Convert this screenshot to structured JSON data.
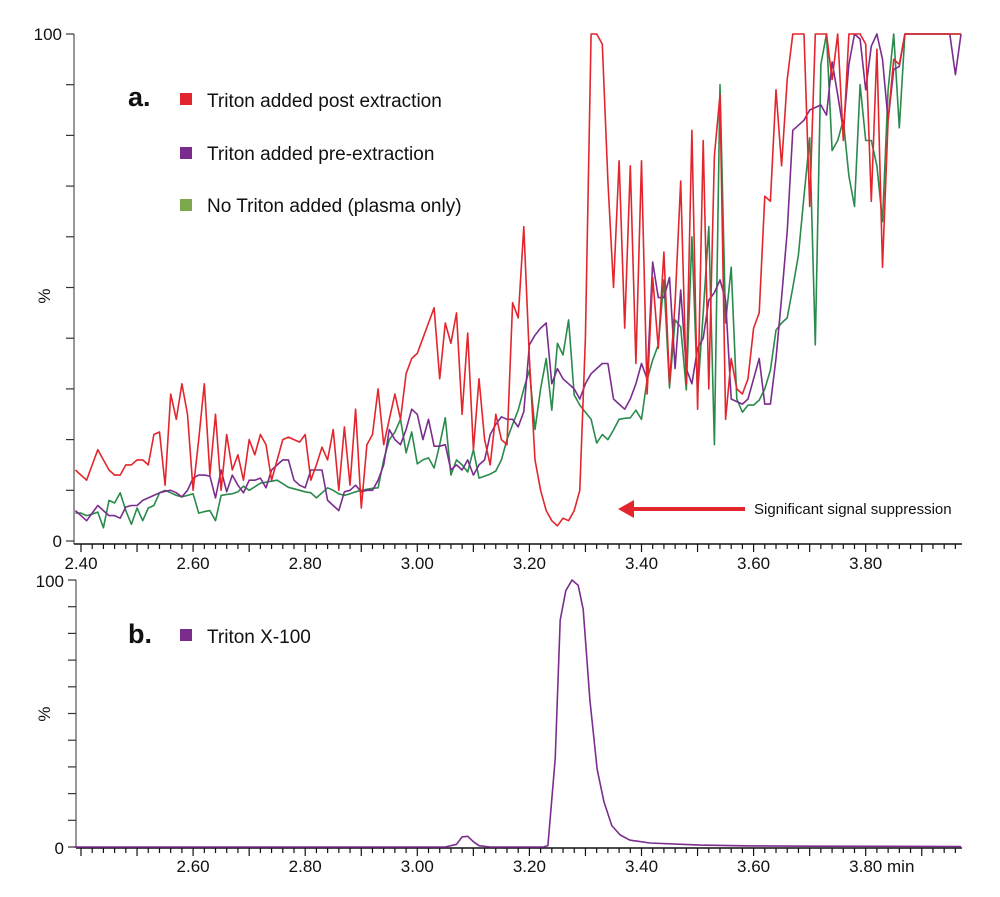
{
  "chart_data": [
    {
      "type": "line",
      "panel_label": "a.",
      "ylabel": "%",
      "ylim": [
        0,
        100
      ],
      "xlim": [
        2.387,
        3.97
      ],
      "y_tick_labels": [
        "0",
        "100"
      ],
      "x_tick_labels": [
        "2.40",
        "2.60",
        "2.80",
        "3.00",
        "3.20",
        "3.40",
        "3.60",
        "3.80"
      ],
      "grid": false,
      "legend_placement": "top-left",
      "annotation": {
        "text": "Significant signal suppression",
        "arrow_tip": {
          "x": 3.36,
          "y": 6
        },
        "color": "#e3262d"
      },
      "x": [
        2.39,
        2.4,
        2.41,
        2.42,
        2.43,
        2.44,
        2.45,
        2.46,
        2.47,
        2.48,
        2.49,
        2.5,
        2.51,
        2.52,
        2.53,
        2.54,
        2.55,
        2.56,
        2.57,
        2.58,
        2.59,
        2.6,
        2.61,
        2.62,
        2.63,
        2.64,
        2.65,
        2.66,
        2.67,
        2.68,
        2.69,
        2.7,
        2.71,
        2.72,
        2.73,
        2.74,
        2.75,
        2.76,
        2.77,
        2.78,
        2.79,
        2.8,
        2.81,
        2.82,
        2.83,
        2.84,
        2.85,
        2.86,
        2.87,
        2.88,
        2.89,
        2.9,
        2.91,
        2.92,
        2.93,
        2.94,
        2.95,
        2.96,
        2.97,
        2.98,
        2.99,
        3.0,
        3.01,
        3.02,
        3.03,
        3.04,
        3.05,
        3.06,
        3.07,
        3.08,
        3.09,
        3.1,
        3.11,
        3.12,
        3.13,
        3.14,
        3.15,
        3.16,
        3.17,
        3.18,
        3.19,
        3.2,
        3.21,
        3.22,
        3.23,
        3.24,
        3.25,
        3.26,
        3.27,
        3.28,
        3.29,
        3.3,
        3.31,
        3.32,
        3.33,
        3.34,
        3.35,
        3.36,
        3.37,
        3.38,
        3.39,
        3.4,
        3.41,
        3.42,
        3.43,
        3.44,
        3.45,
        3.46,
        3.47,
        3.48,
        3.49,
        3.5,
        3.51,
        3.52,
        3.53,
        3.54,
        3.55,
        3.56,
        3.57,
        3.58,
        3.59,
        3.6,
        3.61,
        3.62,
        3.63,
        3.64,
        3.65,
        3.66,
        3.67,
        3.68,
        3.69,
        3.7,
        3.71,
        3.72,
        3.73,
        3.74,
        3.75,
        3.76,
        3.77,
        3.78,
        3.79,
        3.8,
        3.81,
        3.82,
        3.83,
        3.84,
        3.85,
        3.86,
        3.87,
        3.88,
        3.89,
        3.9,
        3.91,
        3.92,
        3.93,
        3.94,
        3.95,
        3.96,
        3.97
      ],
      "series": [
        {
          "name": "Triton added post extraction",
          "color": "#e3262d",
          "legend_color": "#e3262d",
          "values": [
            14,
            13,
            12,
            15,
            18,
            16,
            14,
            13,
            13,
            15,
            15,
            16,
            16,
            15,
            21,
            21.5,
            11,
            29,
            24,
            31,
            25,
            10,
            20,
            31,
            13,
            25,
            10,
            21,
            14,
            17,
            12,
            20,
            17,
            21,
            19,
            12,
            16,
            20,
            20.5,
            20,
            19.5,
            21,
            12,
            15,
            18.5,
            16,
            22,
            10,
            22.5,
            11,
            26,
            6.5,
            19,
            21,
            30,
            19,
            24,
            29,
            24,
            33,
            36,
            37,
            40,
            43,
            46,
            32,
            43,
            39,
            45,
            25,
            41,
            18,
            32,
            20,
            15,
            25,
            20,
            19,
            47,
            44,
            62,
            36,
            16,
            10,
            6,
            4,
            3,
            4.5,
            4,
            6,
            10,
            40,
            100,
            100,
            98,
            71,
            50,
            75,
            42,
            74,
            35,
            75,
            29,
            52,
            38,
            57,
            31,
            47,
            71,
            31,
            81,
            26,
            79,
            30,
            76,
            88,
            24,
            36,
            30,
            29,
            32,
            42,
            45,
            68,
            67,
            89,
            74,
            91,
            100,
            100,
            100,
            66,
            100,
            100,
            100,
            91,
            100,
            79,
            100,
            100,
            100,
            98,
            67,
            97,
            54,
            83,
            95,
            94,
            100,
            100,
            100,
            100,
            100,
            100,
            100,
            100,
            100,
            100,
            100
          ]
        },
        {
          "name": "Triton added pre-extraction",
          "color": "#7b2d8e",
          "legend_color": "#7b2d8e",
          "values": [
            6,
            5,
            4,
            5.5,
            7,
            6,
            5,
            5,
            4.5,
            6.7,
            7,
            7,
            8,
            8.5,
            9,
            9.5,
            9.8,
            10,
            9.5,
            8.7,
            10,
            12.4,
            13,
            13,
            12.8,
            8.5,
            14,
            9.7,
            13,
            11,
            9.5,
            12,
            12,
            12.4,
            10.5,
            14,
            15,
            16,
            16,
            12,
            11,
            10.5,
            14,
            14,
            14,
            8,
            7,
            6,
            9.7,
            10,
            11,
            9.7,
            10,
            10,
            12,
            15,
            22,
            20,
            19,
            22,
            26,
            25,
            20,
            24,
            18.7,
            18.7,
            19,
            14,
            15,
            14,
            16,
            13,
            15,
            16,
            21,
            23,
            24.5,
            24,
            24,
            22.5,
            25.5,
            38.7,
            40.6,
            42,
            43,
            31,
            34,
            32,
            31,
            30,
            28,
            31,
            33,
            34,
            35,
            35,
            28,
            27,
            26,
            28,
            31,
            35,
            32,
            55,
            48,
            48,
            52,
            34,
            49.5,
            34,
            31,
            38,
            40,
            47.5,
            49,
            51.5,
            47.5,
            28,
            27.5,
            27,
            28,
            32,
            36,
            27,
            27,
            36,
            48,
            61,
            81,
            82,
            83,
            85,
            85.5,
            86,
            84,
            94.5,
            88,
            81,
            94,
            100,
            99,
            89,
            97.6,
            100,
            95,
            83,
            93,
            93.6,
            100,
            100,
            100,
            100,
            100,
            100,
            100,
            100,
            100,
            92,
            100
          ]
        },
        {
          "name": "No Triton added (plasma only)",
          "color": "#2a8a4c",
          "legend_color": "#7ba84a",
          "values": [
            5.5,
            5.5,
            5,
            5.3,
            5.7,
            2.6,
            8,
            7.5,
            9.5,
            6,
            3.3,
            6.5,
            4,
            6.5,
            7,
            9.5,
            10,
            9.5,
            9,
            8.7,
            9,
            9.3,
            5.5,
            5.8,
            6,
            4,
            9,
            9.2,
            9.3,
            9.7,
            10.8,
            10,
            10.7,
            11.4,
            11.6,
            11.8,
            12,
            11.3,
            10.6,
            10.3,
            10,
            9.7,
            9.5,
            8.5,
            9.5,
            10.5,
            10,
            9.3,
            9,
            9.3,
            9.7,
            10,
            10.2,
            10.4,
            10.5,
            16,
            20,
            21.5,
            24,
            17.4,
            21.5,
            15.2,
            16,
            16.4,
            14.4,
            19,
            24.3,
            13,
            16,
            15,
            13.6,
            18,
            12.4,
            12.8,
            13.2,
            13.8,
            16,
            20,
            23,
            25.8,
            30,
            33.7,
            22,
            30,
            36,
            25.8,
            39,
            36.7,
            43.6,
            28.8,
            26.8,
            25.4,
            24,
            19.3,
            21,
            20,
            21.9,
            24,
            24.2,
            24.3,
            25.8,
            24,
            31.8,
            35.7,
            38.7,
            51.5,
            30.2,
            43.6,
            42.2,
            29.8,
            60,
            29,
            45,
            62,
            19,
            90,
            43,
            54,
            28,
            25.4,
            26.8,
            26.8,
            27.8,
            30,
            33.7,
            41.6,
            43,
            44,
            50,
            56.4,
            68,
            79.5,
            38.7,
            94,
            100,
            77,
            79,
            83,
            72,
            66,
            90,
            79,
            79,
            74,
            63,
            89,
            100,
            81.5,
            100,
            100,
            100,
            100,
            100,
            100,
            100,
            100,
            100,
            100,
            100
          ]
        }
      ]
    },
    {
      "type": "line",
      "panel_label": "b.",
      "ylabel": "%",
      "ylim": [
        0,
        100
      ],
      "xlim": [
        2.387,
        3.97
      ],
      "y_tick_labels": [
        "0",
        "100"
      ],
      "x_tick_labels": [
        "2.60",
        "2.80",
        "3.00",
        "3.20",
        "3.40",
        "3.60",
        "3.80"
      ],
      "x_unit": "min",
      "grid": false,
      "legend_placement": "top-left",
      "series": [
        {
          "name": "Triton X-100",
          "color": "#7b2d8e",
          "legend_color": "#7b2d8e",
          "points": [
            [
              2.387,
              0
            ],
            [
              3.05,
              0
            ],
            [
              3.07,
              1
            ],
            [
              3.08,
              3.8
            ],
            [
              3.09,
              4
            ],
            [
              3.1,
              2
            ],
            [
              3.11,
              0.5
            ],
            [
              3.13,
              0
            ],
            [
              3.225,
              0
            ],
            [
              3.233,
              0.5
            ],
            [
              3.246,
              33
            ],
            [
              3.255,
              85
            ],
            [
              3.265,
              96
            ],
            [
              3.276,
              100
            ],
            [
              3.287,
              98
            ],
            [
              3.296,
              89
            ],
            [
              3.308,
              55
            ],
            [
              3.321,
              29
            ],
            [
              3.333,
              17
            ],
            [
              3.347,
              8
            ],
            [
              3.362,
              4.5
            ],
            [
              3.379,
              2.6
            ],
            [
              3.415,
              1.5
            ],
            [
              3.504,
              0.7
            ],
            [
              3.594,
              0.4
            ],
            [
              3.7,
              0.3
            ],
            [
              3.97,
              0.2
            ]
          ]
        }
      ]
    }
  ]
}
